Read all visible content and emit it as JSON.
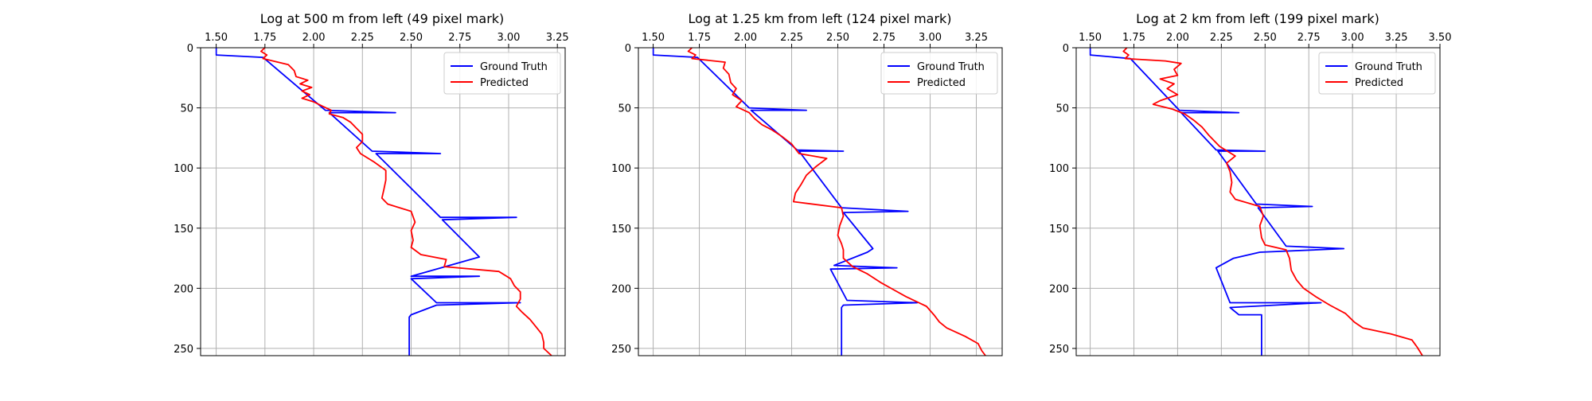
{
  "figure": {
    "background": "#ffffff",
    "grid_color": "#b0b0b0",
    "series_colors": {
      "Ground Truth": "#0000ff",
      "Predicted": "#ff0000"
    }
  },
  "chart_data": [
    {
      "type": "line",
      "title": "Log at 500 m from left (49 pixel mark)",
      "xlabel": "",
      "ylabel": "",
      "xlim": [
        1.42,
        3.29
      ],
      "ylim": [
        256,
        0
      ],
      "y_inverted": true,
      "x_axis_position": "top",
      "xticks": [
        "1.50",
        "1.75",
        "2.00",
        "2.25",
        "2.50",
        "2.75",
        "3.00",
        "3.25"
      ],
      "yticks": [
        "0",
        "50",
        "100",
        "150",
        "200",
        "250"
      ],
      "grid": true,
      "legend": {
        "position": "top-right",
        "entries": [
          "Ground Truth",
          "Predicted"
        ]
      },
      "series": [
        {
          "name": "Ground Truth",
          "color": "#0000ff",
          "points": [
            [
              1.5,
              0
            ],
            [
              1.5,
              6
            ],
            [
              1.74,
              8
            ],
            [
              2.06,
              52
            ],
            [
              2.42,
              54
            ],
            [
              2.08,
              54
            ],
            [
              2.3,
              86
            ],
            [
              2.65,
              88
            ],
            [
              2.32,
              88
            ],
            [
              2.65,
              141
            ],
            [
              3.04,
              141
            ],
            [
              2.66,
              143
            ],
            [
              2.85,
              174
            ],
            [
              2.5,
              190
            ],
            [
              2.85,
              190
            ],
            [
              2.5,
              192
            ],
            [
              2.63,
              212
            ],
            [
              3.06,
              212
            ],
            [
              2.63,
              214
            ],
            [
              2.5,
              222
            ],
            [
              2.49,
              224
            ],
            [
              2.49,
              256
            ]
          ]
        },
        {
          "name": "Predicted",
          "color": "#ff0000",
          "points": [
            [
              1.75,
              0
            ],
            [
              1.73,
              3
            ],
            [
              1.76,
              6
            ],
            [
              1.74,
              9
            ],
            [
              1.87,
              14
            ],
            [
              1.9,
              19
            ],
            [
              1.91,
              24
            ],
            [
              1.97,
              27
            ],
            [
              1.93,
              30
            ],
            [
              1.99,
              33
            ],
            [
              1.94,
              36
            ],
            [
              1.98,
              39
            ],
            [
              1.94,
              42
            ],
            [
              2.0,
              45
            ],
            [
              2.05,
              49
            ],
            [
              2.09,
              52
            ],
            [
              2.08,
              55
            ],
            [
              2.15,
              58
            ],
            [
              2.19,
              62
            ],
            [
              2.22,
              67
            ],
            [
              2.25,
              72
            ],
            [
              2.25,
              78
            ],
            [
              2.22,
              83
            ],
            [
              2.24,
              88
            ],
            [
              2.31,
              95
            ],
            [
              2.37,
              102
            ],
            [
              2.37,
              110
            ],
            [
              2.36,
              118
            ],
            [
              2.35,
              125
            ],
            [
              2.38,
              130
            ],
            [
              2.5,
              136
            ],
            [
              2.52,
              145
            ],
            [
              2.5,
              152
            ],
            [
              2.51,
              160
            ],
            [
              2.5,
              166
            ],
            [
              2.55,
              172
            ],
            [
              2.68,
              176
            ],
            [
              2.67,
              182
            ],
            [
              2.95,
              186
            ],
            [
              3.01,
              192
            ],
            [
              3.03,
              198
            ],
            [
              3.06,
              203
            ],
            [
              3.06,
              209
            ],
            [
              3.04,
              215
            ],
            [
              3.07,
              220
            ],
            [
              3.11,
              226
            ],
            [
              3.14,
              232
            ],
            [
              3.17,
              238
            ],
            [
              3.18,
              245
            ],
            [
              3.18,
              250
            ],
            [
              3.22,
              256
            ]
          ]
        }
      ]
    },
    {
      "type": "line",
      "title": "Log at 1.25 km from left (124 pixel mark)",
      "xlabel": "",
      "ylabel": "",
      "xlim": [
        1.42,
        3.39
      ],
      "ylim": [
        256,
        0
      ],
      "y_inverted": true,
      "x_axis_position": "top",
      "xticks": [
        "1.50",
        "1.75",
        "2.00",
        "2.25",
        "2.50",
        "2.75",
        "3.00",
        "3.25"
      ],
      "yticks": [
        "0",
        "50",
        "100",
        "150",
        "200",
        "250"
      ],
      "grid": true,
      "legend": {
        "position": "top-right",
        "entries": [
          "Ground Truth",
          "Predicted"
        ]
      },
      "series": [
        {
          "name": "Ground Truth",
          "color": "#0000ff",
          "points": [
            [
              1.5,
              0
            ],
            [
              1.5,
              6
            ],
            [
              1.74,
              8
            ],
            [
              2.02,
              50
            ],
            [
              2.33,
              52
            ],
            [
              2.03,
              52
            ],
            [
              2.28,
              85
            ],
            [
              2.53,
              86
            ],
            [
              2.29,
              86
            ],
            [
              2.52,
              133
            ],
            [
              2.88,
              136
            ],
            [
              2.53,
              137
            ],
            [
              2.69,
              167
            ],
            [
              2.66,
              170
            ],
            [
              2.48,
              181
            ],
            [
              2.82,
              183
            ],
            [
              2.46,
              184
            ],
            [
              2.55,
              210
            ],
            [
              2.93,
              212
            ],
            [
              2.53,
              214
            ],
            [
              2.52,
              216
            ],
            [
              2.52,
              256
            ]
          ]
        },
        {
          "name": "Predicted",
          "color": "#ff0000",
          "points": [
            [
              1.71,
              0
            ],
            [
              1.69,
              3
            ],
            [
              1.73,
              6
            ],
            [
              1.71,
              9
            ],
            [
              1.89,
              12
            ],
            [
              1.88,
              17
            ],
            [
              1.91,
              22
            ],
            [
              1.92,
              29
            ],
            [
              1.95,
              34
            ],
            [
              1.93,
              39
            ],
            [
              1.98,
              44
            ],
            [
              1.95,
              49
            ],
            [
              2.02,
              54
            ],
            [
              2.05,
              59
            ],
            [
              2.09,
              64
            ],
            [
              2.14,
              68
            ],
            [
              2.2,
              74
            ],
            [
              2.25,
              80
            ],
            [
              2.29,
              88
            ],
            [
              2.44,
              92
            ],
            [
              2.38,
              99
            ],
            [
              2.33,
              106
            ],
            [
              2.3,
              114
            ],
            [
              2.27,
              121
            ],
            [
              2.26,
              128
            ],
            [
              2.52,
              133
            ],
            [
              2.53,
              140
            ],
            [
              2.51,
              148
            ],
            [
              2.5,
              156
            ],
            [
              2.52,
              163
            ],
            [
              2.53,
              168
            ],
            [
              2.53,
              175
            ],
            [
              2.58,
              182
            ],
            [
              2.66,
              188
            ],
            [
              2.73,
              195
            ],
            [
              2.8,
              201
            ],
            [
              2.87,
              207
            ],
            [
              2.98,
              215
            ],
            [
              3.02,
              222
            ],
            [
              3.05,
              228
            ],
            [
              3.09,
              233
            ],
            [
              3.19,
              240
            ],
            [
              3.26,
              246
            ],
            [
              3.28,
              252
            ],
            [
              3.3,
              256
            ]
          ]
        }
      ]
    },
    {
      "type": "line",
      "title": "Log at 2 km from left (199 pixel mark)",
      "xlabel": "",
      "ylabel": "",
      "xlim": [
        1.42,
        3.5
      ],
      "ylim": [
        256,
        0
      ],
      "y_inverted": true,
      "x_axis_position": "top",
      "xticks": [
        "1.50",
        "1.75",
        "2.00",
        "2.25",
        "2.50",
        "2.75",
        "3.00",
        "3.25",
        "3.50"
      ],
      "yticks": [
        "0",
        "50",
        "100",
        "150",
        "200",
        "250"
      ],
      "grid": true,
      "legend": {
        "position": "top-right",
        "entries": [
          "Ground Truth",
          "Predicted"
        ]
      },
      "series": [
        {
          "name": "Ground Truth",
          "color": "#0000ff",
          "points": [
            [
              1.5,
              0
            ],
            [
              1.5,
              6
            ],
            [
              1.73,
              9
            ],
            [
              2.01,
              52
            ],
            [
              2.35,
              54
            ],
            [
              2.02,
              54
            ],
            [
              2.22,
              85
            ],
            [
              2.5,
              86
            ],
            [
              2.23,
              86
            ],
            [
              2.45,
              130
            ],
            [
              2.77,
              132
            ],
            [
              2.46,
              133
            ],
            [
              2.62,
              165
            ],
            [
              2.95,
              167
            ],
            [
              2.47,
              170
            ],
            [
              2.32,
              175
            ],
            [
              2.22,
              183
            ],
            [
              2.3,
              212
            ],
            [
              2.82,
              212
            ],
            [
              2.3,
              216
            ],
            [
              2.35,
              222
            ],
            [
              2.48,
              222
            ],
            [
              2.48,
              256
            ]
          ]
        },
        {
          "name": "Predicted",
          "color": "#ff0000",
          "points": [
            [
              1.71,
              0
            ],
            [
              1.69,
              3
            ],
            [
              1.72,
              6
            ],
            [
              1.7,
              9
            ],
            [
              1.93,
              11
            ],
            [
              2.02,
              13
            ],
            [
              1.98,
              18
            ],
            [
              2.0,
              23
            ],
            [
              1.9,
              26
            ],
            [
              1.98,
              30
            ],
            [
              1.94,
              34
            ],
            [
              2.0,
              39
            ],
            [
              1.9,
              44
            ],
            [
              1.86,
              47
            ],
            [
              1.97,
              51
            ],
            [
              2.04,
              55
            ],
            [
              2.09,
              60
            ],
            [
              2.14,
              66
            ],
            [
              2.18,
              73
            ],
            [
              2.24,
              82
            ],
            [
              2.33,
              90
            ],
            [
              2.28,
              96
            ],
            [
              2.3,
              103
            ],
            [
              2.31,
              112
            ],
            [
              2.3,
              120
            ],
            [
              2.33,
              126
            ],
            [
              2.47,
              132
            ],
            [
              2.49,
              140
            ],
            [
              2.47,
              148
            ],
            [
              2.48,
              158
            ],
            [
              2.5,
              164
            ],
            [
              2.62,
              168
            ],
            [
              2.64,
              175
            ],
            [
              2.65,
              185
            ],
            [
              2.68,
              193
            ],
            [
              2.72,
              200
            ],
            [
              2.79,
              207
            ],
            [
              2.87,
              214
            ],
            [
              2.96,
              221
            ],
            [
              3.01,
              228
            ],
            [
              3.06,
              233
            ],
            [
              3.22,
              238
            ],
            [
              3.34,
              243
            ],
            [
              3.37,
              249
            ],
            [
              3.4,
              256
            ]
          ]
        }
      ]
    }
  ]
}
